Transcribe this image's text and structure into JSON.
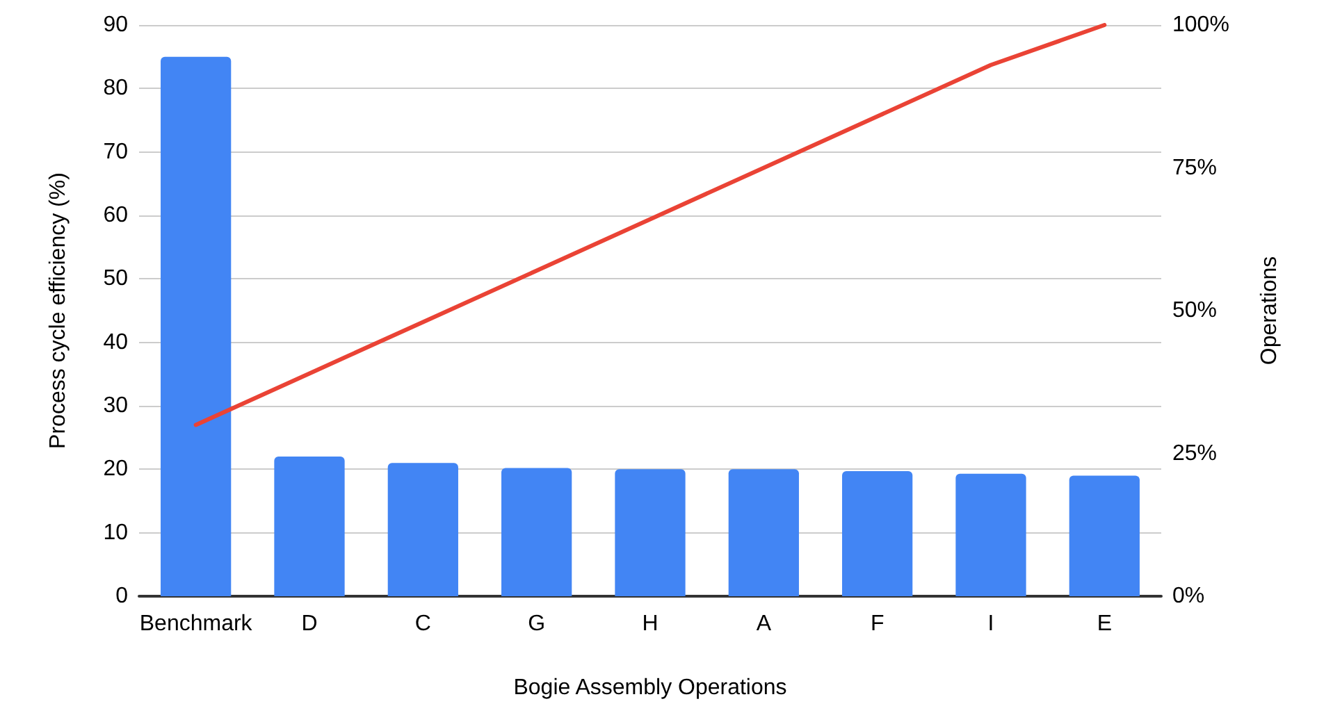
{
  "chart_data": {
    "type": "bar",
    "xlabel": "Bogie Assembly Operations",
    "ylabel": "Process cycle efficiency (%)",
    "y2label": "Operations",
    "categories": [
      "Benchmark",
      "D",
      "C",
      "G",
      "H",
      "A",
      "F",
      "I",
      "E"
    ],
    "series": [
      {
        "color": "#4285f4",
        "values": [
          85,
          22,
          21,
          20.2,
          20,
          20,
          19.7,
          19.3,
          19
        ]
      },
      {
        "type": "line",
        "axis": "y2",
        "color": "#ea4335",
        "marker": "none",
        "values": [
          30,
          39,
          48,
          57,
          66,
          75,
          84,
          93,
          100
        ]
      }
    ],
    "ylim": [
      0,
      90
    ],
    "yticks": [
      0,
      10,
      20,
      30,
      40,
      50,
      60,
      70,
      80,
      90
    ],
    "y2lim": [
      0,
      100
    ],
    "y2ticks": [
      {
        "value": 0,
        "label": "0%"
      },
      {
        "value": 25,
        "label": "25%"
      },
      {
        "value": 50,
        "label": "50%"
      },
      {
        "value": 75,
        "label": "75%"
      },
      {
        "value": 100,
        "label": "100%"
      }
    ],
    "grid": "y"
  }
}
